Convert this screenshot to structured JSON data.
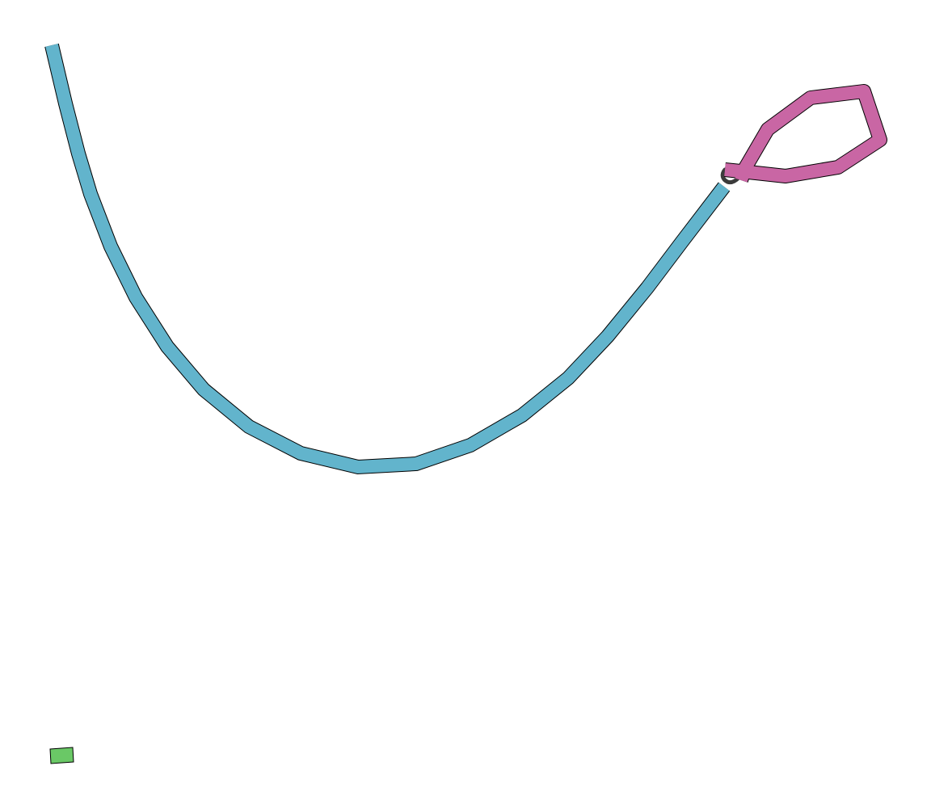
{
  "diagram": {
    "kind": "assembly-graph",
    "segments": [
      {
        "name": "blue-segment",
        "color": "#62b4cc",
        "shape": "long-curved-path"
      },
      {
        "name": "pink-segment",
        "color": "#c966a4",
        "shape": "loop"
      },
      {
        "name": "green-segment",
        "color": "#6ac866",
        "shape": "short-block"
      },
      {
        "name": "dark-connector",
        "color": "#3b3b3b",
        "shape": "short-link"
      }
    ],
    "outline_color": "#000000"
  }
}
